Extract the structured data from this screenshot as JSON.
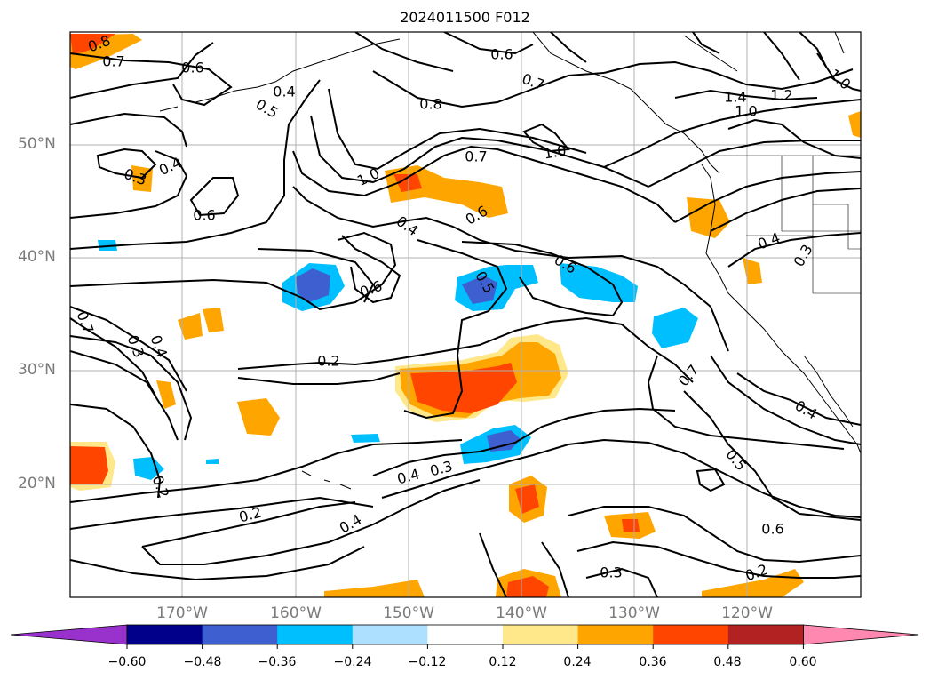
{
  "title": "2024011500 F012",
  "map": {
    "lat_labels": [
      "50°N",
      "40°N",
      "30°N",
      "20°N"
    ],
    "lon_labels": [
      "170°W",
      "160°W",
      "150°W",
      "140°W",
      "130°W",
      "120°W"
    ],
    "contour_labels": [
      "0.8",
      "0.7",
      "0.6",
      "0.4",
      "0.5",
      "0.6",
      "0.8",
      "0.7",
      "1.4",
      "1.2",
      "1.0",
      "1.0",
      "1.0",
      "0.7",
      "1.0",
      "0.3",
      "0.4",
      "0.6",
      "0.4",
      "0.6",
      "0.6",
      "0.5",
      "0.6",
      "0.4",
      "0.3",
      "0.7",
      "0.3",
      "0.4",
      "0.2",
      "0.7",
      "0.4",
      "0.5",
      "0.4",
      "0.3",
      "0.2",
      "0.4",
      "0.2",
      "0.6",
      "0.3",
      "0.2"
    ]
  },
  "colorbar": {
    "ticks": [
      "−0.60",
      "−0.48",
      "−0.36",
      "−0.24",
      "−0.12",
      "0.12",
      "0.24",
      "0.36",
      "0.48",
      "0.60"
    ],
    "colors": [
      "#9932cc",
      "#00008b",
      "#3e5fcf",
      "#00bfff",
      "#addfff",
      "#ffffff",
      "#ffe88a",
      "#ffa500",
      "#ff4500",
      "#b22222",
      "#ff88b0"
    ]
  },
  "colors": {
    "frame": "#000000",
    "grid": "#b0b0b0",
    "contour": "#000000"
  }
}
